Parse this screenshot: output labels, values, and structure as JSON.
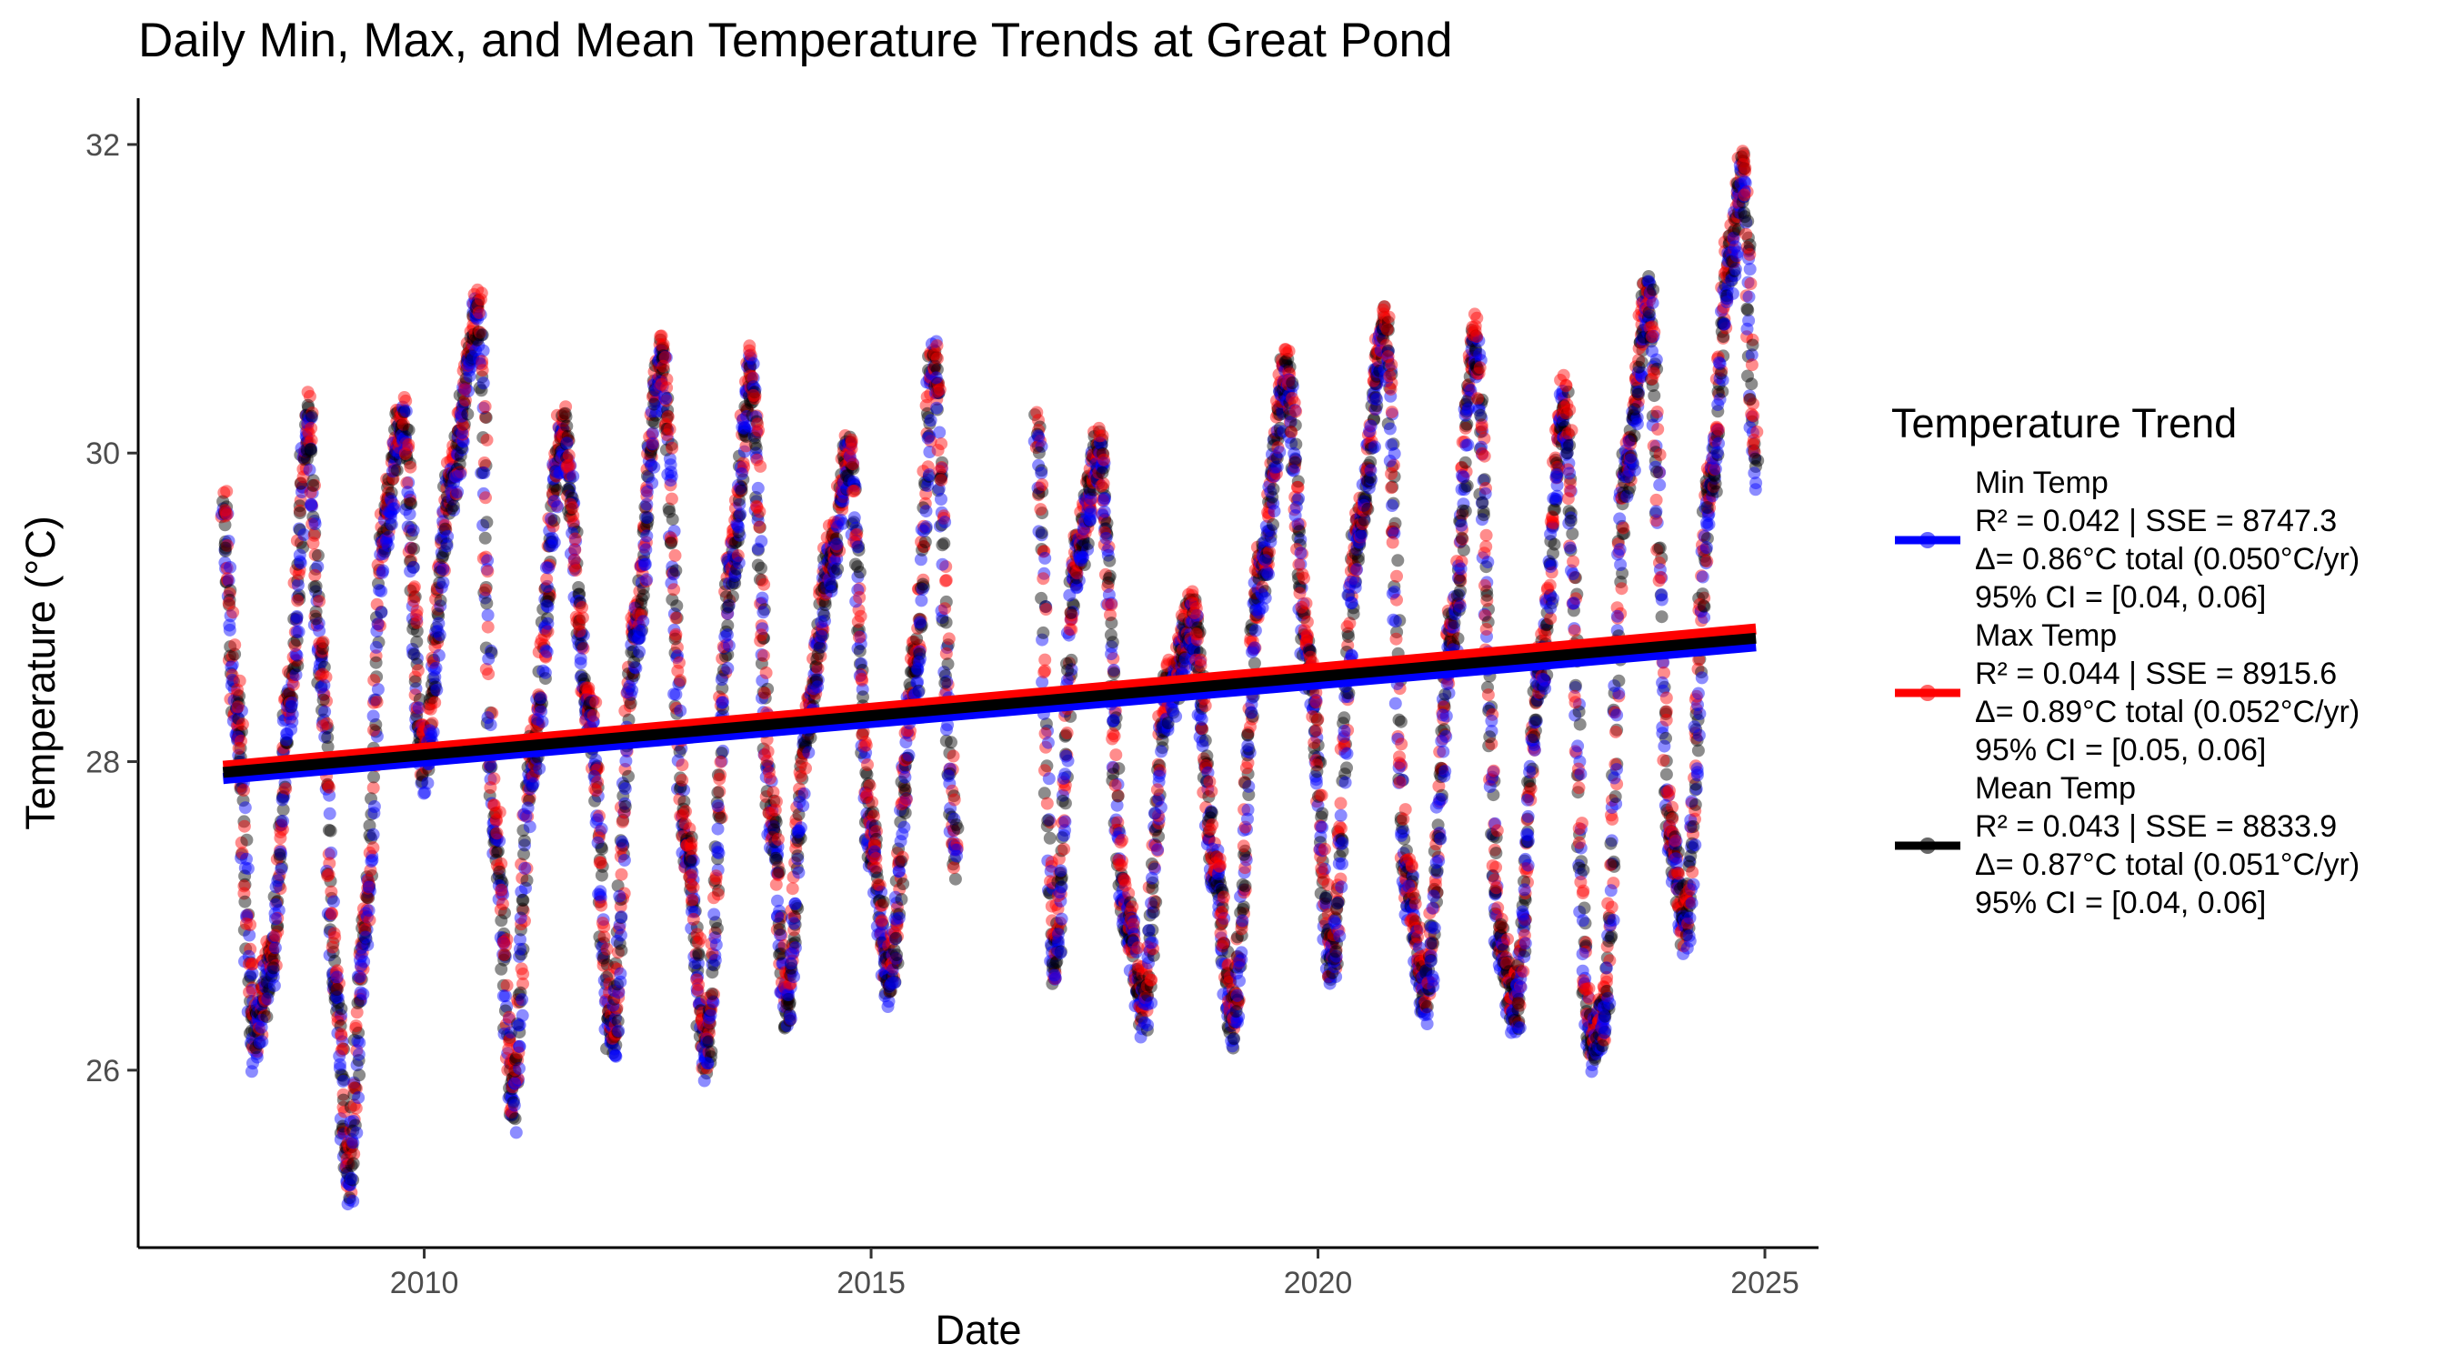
{
  "chart_data": {
    "type": "scatter",
    "title": "Daily Min, Max, and Mean Temperature Trends at Great Pond",
    "xlabel": "Date",
    "ylabel": "Temperature (°C)",
    "xlim": [
      2006.8,
      2025.6
    ],
    "ylim": [
      24.85,
      32.3
    ],
    "x_ticks": [
      2010,
      2015,
      2020,
      2025
    ],
    "x_tick_labels": [
      "2010",
      "2015",
      "2020",
      "2025"
    ],
    "y_ticks": [
      26,
      28,
      30,
      32
    ],
    "y_tick_labels": [
      "26",
      "28",
      "30",
      "32"
    ],
    "grid": false,
    "legend_position": "right",
    "legend_title": "Temperature Trend",
    "data_range": [
      2007.75,
      2024.9
    ],
    "series": [
      {
        "name": "Min Temp",
        "color": "#0000ff",
        "trend": {
          "x": [
            2007.75,
            2024.9
          ],
          "y": [
            27.89,
            28.75
          ]
        },
        "stats": [
          "R² = 0.042 | SSE = 8747.3",
          "Δ= 0.86°C total (0.050°C/yr)",
          "95% CI = [0.04, 0.06]"
        ]
      },
      {
        "name": "Max Temp",
        "color": "#ff0000",
        "trend": {
          "x": [
            2007.75,
            2024.9
          ],
          "y": [
            27.97,
            28.86
          ]
        },
        "stats": [
          "R² = 0.044 | SSE = 8915.6",
          "Δ= 0.89°C total (0.052°C/yr)",
          "95% CI = [0.05, 0.06]"
        ]
      },
      {
        "name": "Mean Temp",
        "color": "#000000",
        "trend": {
          "x": [
            2007.75,
            2024.9
          ],
          "y": [
            27.93,
            28.8
          ]
        },
        "stats": [
          "R² = 0.043 | SSE = 8833.9",
          "Δ= 0.87°C total (0.051°C/yr)",
          "95% CI = [0.04, 0.06]"
        ]
      }
    ],
    "scatter_summary": [
      [
        2007.75,
        29.6
      ],
      [
        2007.9,
        28.3
      ],
      [
        2008.1,
        26.2
      ],
      [
        2008.3,
        26.7
      ],
      [
        2008.5,
        28.4
      ],
      [
        2008.7,
        30.2
      ],
      [
        2008.85,
        28.6
      ],
      [
        2009.0,
        26.6
      ],
      [
        2009.15,
        25.3
      ],
      [
        2009.35,
        27.0
      ],
      [
        2009.55,
        29.5
      ],
      [
        2009.75,
        30.2
      ],
      [
        2010.0,
        28.0
      ],
      [
        2010.3,
        29.8
      ],
      [
        2010.6,
        30.9
      ],
      [
        2010.8,
        27.5
      ],
      [
        2011.0,
        25.8
      ],
      [
        2011.2,
        28.0
      ],
      [
        2011.55,
        30.1
      ],
      [
        2011.85,
        28.3
      ],
      [
        2012.1,
        26.2
      ],
      [
        2012.35,
        28.8
      ],
      [
        2012.65,
        30.6
      ],
      [
        2012.95,
        27.4
      ],
      [
        2013.15,
        26.1
      ],
      [
        2013.45,
        29.3
      ],
      [
        2013.65,
        30.5
      ],
      [
        2013.9,
        27.6
      ],
      [
        2014.05,
        26.4
      ],
      [
        2014.3,
        28.3
      ],
      [
        2014.55,
        29.3
      ],
      [
        2014.75,
        30.0
      ],
      [
        2015.0,
        27.5
      ],
      [
        2015.2,
        26.6
      ],
      [
        2015.5,
        28.6
      ],
      [
        2015.7,
        30.6
      ],
      [
        2015.95,
        27.4
      ],
      [
        2016.85,
        30.1
      ],
      [
        2017.05,
        26.7
      ],
      [
        2017.3,
        29.3
      ],
      [
        2017.55,
        30.0
      ],
      [
        2017.85,
        27.0
      ],
      [
        2018.05,
        26.4
      ],
      [
        2018.3,
        28.4
      ],
      [
        2018.6,
        28.9
      ],
      [
        2018.85,
        27.3
      ],
      [
        2019.05,
        26.3
      ],
      [
        2019.35,
        29.2
      ],
      [
        2019.65,
        30.5
      ],
      [
        2019.9,
        28.6
      ],
      [
        2020.15,
        26.7
      ],
      [
        2020.45,
        29.5
      ],
      [
        2020.75,
        30.8
      ],
      [
        2021.0,
        27.2
      ],
      [
        2021.2,
        26.5
      ],
      [
        2021.5,
        28.8
      ],
      [
        2021.75,
        30.7
      ],
      [
        2022.05,
        26.8
      ],
      [
        2022.2,
        26.4
      ],
      [
        2022.5,
        28.6
      ],
      [
        2022.75,
        30.3
      ],
      [
        2023.05,
        26.2
      ],
      [
        2023.2,
        26.3
      ],
      [
        2023.45,
        29.9
      ],
      [
        2023.7,
        31.0
      ],
      [
        2023.95,
        27.5
      ],
      [
        2024.1,
        26.9
      ],
      [
        2024.4,
        29.8
      ],
      [
        2024.6,
        31.2
      ],
      [
        2024.75,
        31.8
      ],
      [
        2024.9,
        29.9
      ]
    ]
  }
}
